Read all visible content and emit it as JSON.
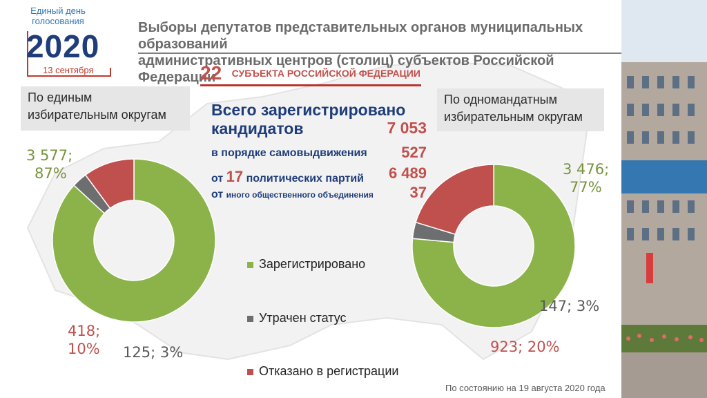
{
  "logo": {
    "top_line1": "Единый день",
    "top_line2": "голосования",
    "year": "2020",
    "date": "13 сентября"
  },
  "header": {
    "title_line1": "Выборы депутатов представительных органов муниципальных образований",
    "title_line2": "административных центров (столиц) субъектов Российской Федерации"
  },
  "subjects": {
    "number": "22",
    "text": "СУБЪЕКТА РОССИЙСКОЙ ФЕДЕРАЦИИ"
  },
  "left_box": {
    "line1": "По единым",
    "line2": "избирательным округам"
  },
  "right_box": {
    "line1": "По одномандатным",
    "line2": "избирательным округам"
  },
  "summary": {
    "head_line1": "Всего зарегистрировано",
    "head_line2": "кандидатов",
    "total": "7 053",
    "self_label": "в порядке самовыдвижения",
    "self_value": "527",
    "parties_prefix": "от",
    "parties_count": "17",
    "parties_label": "политических партий",
    "parties_value": "6 489",
    "other_prefix": "от",
    "other_label": "иного общественного объединения",
    "other_value": "37"
  },
  "legend": {
    "registered": "Зарегистрировано",
    "lost": "Утрачен статус",
    "refused": "Отказано в регистрации"
  },
  "colors": {
    "registered": "#8cb34a",
    "lost": "#6d6e70",
    "refused": "#c0504d"
  },
  "labels": {
    "left_registered_value": "3 577;",
    "left_registered_pct": "87%",
    "left_refused_value": "418;",
    "left_refused_pct": "10%",
    "left_lost": "125; 3%",
    "right_registered_value": "3 476;",
    "right_registered_pct": "77%",
    "right_lost": "147; 3%",
    "right_refused": "923; 20%"
  },
  "note": "По состоянию на 19 августа 2020 года",
  "chart_data": [
    {
      "type": "pie",
      "title": "По единым избирательным округам",
      "categories": [
        "Зарегистрировано",
        "Утрачен статус",
        "Отказано в регистрации"
      ],
      "values": [
        3577,
        125,
        418
      ],
      "percents": [
        87,
        3,
        10
      ]
    },
    {
      "type": "pie",
      "title": "По одномандатным избирательным округам",
      "categories": [
        "Зарегистрировано",
        "Утрачен статус",
        "Отказано в регистрации"
      ],
      "values": [
        3476,
        147,
        923
      ],
      "percents": [
        77,
        3,
        20
      ]
    }
  ]
}
